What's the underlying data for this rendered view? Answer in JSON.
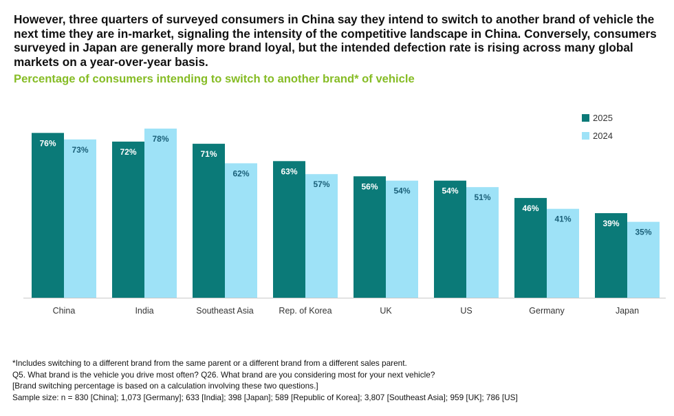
{
  "headline": "However, three quarters of surveyed consumers in China say they intend to switch to another brand of vehicle the next time they are in-market, signaling the intensity of the competitive landscape in China. Conversely, consumers surveyed in Japan are generally more brand loyal, but the intended defection rate is rising across many global markets on a year-over-year basis.",
  "subtitle": "Percentage of consumers intending to switch to another brand* of vehicle",
  "chart_data": {
    "type": "bar",
    "title": "Percentage of consumers intending to switch to another brand* of vehicle",
    "categories": [
      "China",
      "India",
      "Southeast Asia",
      "Rep. of Korea",
      "UK",
      "US",
      "Germany",
      "Japan"
    ],
    "series": [
      {
        "name": "2025",
        "color": "#0b7a78",
        "label_color": "#ffffff",
        "values": [
          76,
          72,
          71,
          63,
          56,
          54,
          46,
          39
        ],
        "labels": [
          "76%",
          "72%",
          "71%",
          "63%",
          "56%",
          "54%",
          "46%",
          "39%"
        ]
      },
      {
        "name": "2024",
        "color": "#9ee2f7",
        "label_color": "#1a5f78",
        "values": [
          73,
          78,
          62,
          57,
          54,
          51,
          41,
          35
        ],
        "labels": [
          "73%",
          "78%",
          "62%",
          "57%",
          "54%",
          "51%",
          "41%",
          "35%"
        ]
      }
    ],
    "ylim": [
      0,
      78
    ],
    "grid": false,
    "legend": "top-right",
    "value_format": "percent"
  },
  "footnotes": [
    "*Includes switching to a different brand from the same parent or a different brand from a different sales parent.",
    "Q5. What brand is the vehicle you drive most often? Q26. What brand are you considering most for your next vehicle?",
    "[Brand switching percentage is based on a calculation involving these two questions.]",
    "Sample size: n = 830 [China]; 1,073 [Germany]; 633 [India]; 398 [Japan]; 589 [Republic of Korea]; 3,807 [Southeast Asia]; 959 [UK]; 786 [US]"
  ]
}
